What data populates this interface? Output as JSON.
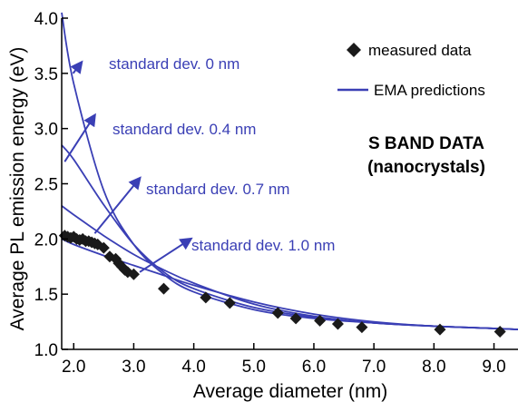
{
  "chart_data": {
    "type": "scatter",
    "xlabel": "Average diameter (nm)",
    "ylabel": "Average PL emission energy (eV)",
    "xlim": [
      1.8,
      9.4
    ],
    "ylim": [
      1.0,
      4.0
    ],
    "x_ticks": [
      "2.0",
      "3.0",
      "4.0",
      "5.0",
      "6.0",
      "7.0",
      "8.0",
      "9.0"
    ],
    "y_ticks": [
      "1.0",
      "1.5",
      "2.0",
      "2.5",
      "3.0",
      "3.5",
      "4.0"
    ],
    "grid": false,
    "legend_position": "top-right",
    "series": [
      {
        "name": "measured data",
        "kind": "scatter",
        "marker": "diamond",
        "color": "#1a1a1a",
        "points": [
          [
            1.85,
            2.03
          ],
          [
            1.9,
            2.02
          ],
          [
            1.95,
            2.01
          ],
          [
            2.0,
            2.02
          ],
          [
            2.05,
            2.0
          ],
          [
            2.1,
            1.99
          ],
          [
            2.15,
            2.0
          ],
          [
            2.2,
            1.98
          ],
          [
            2.25,
            1.98
          ],
          [
            2.3,
            1.97
          ],
          [
            2.35,
            1.96
          ],
          [
            2.4,
            1.95
          ],
          [
            2.5,
            1.92
          ],
          [
            2.6,
            1.84
          ],
          [
            2.7,
            1.82
          ],
          [
            2.75,
            1.78
          ],
          [
            2.8,
            1.75
          ],
          [
            2.85,
            1.72
          ],
          [
            2.9,
            1.7
          ],
          [
            3.0,
            1.68
          ],
          [
            3.5,
            1.55
          ],
          [
            4.2,
            1.47
          ],
          [
            4.6,
            1.42
          ],
          [
            5.4,
            1.33
          ],
          [
            5.7,
            1.28
          ],
          [
            6.1,
            1.26
          ],
          [
            6.4,
            1.23
          ],
          [
            6.8,
            1.2
          ],
          [
            8.1,
            1.18
          ],
          [
            9.1,
            1.16
          ]
        ]
      },
      {
        "name": "EMA predictions",
        "kind": "lines",
        "color": "#3a3fb5",
        "curves": [
          {
            "label": "standard dev. 0 nm",
            "x": [
              1.8,
              2.0,
              2.5,
              3.0,
              3.5,
              4.0,
              5.0,
              6.0,
              7.0,
              8.0,
              9.0,
              9.4
            ],
            "y": [
              4.05,
              3.41,
              2.44,
              1.95,
              1.68,
              1.52,
              1.36,
              1.28,
              1.24,
              1.21,
              1.19,
              1.18
            ]
          },
          {
            "label": "standard dev. 0.4 nm",
            "x": [
              1.8,
              2.0,
              2.5,
              3.0,
              3.5,
              4.0,
              5.0,
              6.0,
              7.0,
              8.0,
              9.0,
              9.4
            ],
            "y": [
              2.85,
              2.72,
              2.31,
              1.95,
              1.7,
              1.55,
              1.38,
              1.29,
              1.24,
              1.21,
              1.19,
              1.18
            ]
          },
          {
            "label": "standard dev. 0.7 nm",
            "x": [
              1.8,
              2.0,
              2.5,
              3.0,
              3.5,
              4.0,
              5.0,
              6.0,
              7.0,
              8.0,
              9.0,
              9.4
            ],
            "y": [
              2.3,
              2.22,
              2.03,
              1.86,
              1.72,
              1.6,
              1.41,
              1.3,
              1.24,
              1.21,
              1.19,
              1.18
            ]
          },
          {
            "label": "standard dev. 1.0 nm",
            "x": [
              1.8,
              2.0,
              2.5,
              3.0,
              3.5,
              4.0,
              5.0,
              6.0,
              7.0,
              8.0,
              9.0,
              9.4
            ],
            "y": [
              2.0,
              1.95,
              1.85,
              1.76,
              1.67,
              1.58,
              1.43,
              1.32,
              1.25,
              1.21,
              1.19,
              1.18
            ]
          }
        ]
      }
    ],
    "annotations": [
      {
        "text": "standard dev. 0 nm",
        "anchor": [
          2.13,
          3.6
        ],
        "target": [
          1.99,
          3.5
        ]
      },
      {
        "text": "standard dev. 0.4 nm",
        "anchor": [
          2.35,
          3.12
        ],
        "target": [
          1.85,
          2.7
        ]
      },
      {
        "text": "standard dev. 0.7 nm",
        "anchor": [
          3.1,
          2.55
        ],
        "target": [
          2.35,
          2.05
        ]
      },
      {
        "text": "standard dev. 1.0 nm",
        "anchor": [
          3.95,
          2.0
        ],
        "target": [
          3.1,
          1.7
        ]
      }
    ],
    "band_label_line1": "S BAND DATA",
    "band_label_line2": "(nanocrystals)"
  }
}
